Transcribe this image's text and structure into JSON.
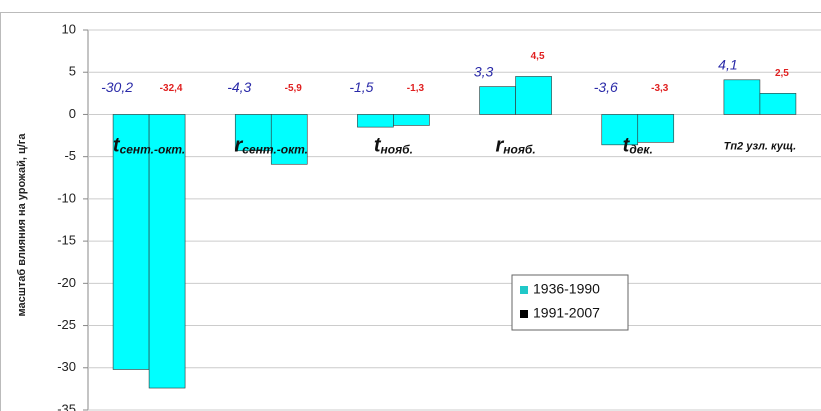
{
  "chart_data": {
    "type": "bar",
    "y_label": "масштаб влияния на урожай, ц/га",
    "categories": [
      {
        "symbol": "t",
        "subscript": "сент.-окт."
      },
      {
        "symbol": "r",
        "subscript": "сент.-окт."
      },
      {
        "symbol": "t",
        "subscript": "нояб."
      },
      {
        "symbol": "r",
        "subscript": "нояб."
      },
      {
        "symbol": "t",
        "subscript": "дек."
      },
      {
        "symbol": "Tп2 узл. кущ."
      }
    ],
    "series": [
      {
        "name": "1936-1990",
        "color": "#00ffff",
        "legend_color": "#20c8c8",
        "label_color": "#2a2aa8",
        "values": [
          -30.2,
          -4.3,
          -1.5,
          3.3,
          -3.6,
          4.1
        ],
        "value_labels": [
          "-30,2",
          "-4,3",
          "-1,5",
          "3,3",
          "-3,6",
          "4,1"
        ]
      },
      {
        "name": "1991-2007",
        "color": "#00ffff",
        "legend_color": "#000000",
        "label_color": "#e02020",
        "values": [
          -32.4,
          -5.9,
          -1.3,
          4.5,
          -3.3,
          2.5
        ],
        "value_labels": [
          "-32,4",
          "-5,9",
          "-1,3",
          "4,5",
          "-3,3",
          "2,5"
        ]
      }
    ],
    "ylim": [
      -35,
      10
    ],
    "yticks": [
      -35,
      -30,
      -25,
      -20,
      -15,
      -10,
      -5,
      0,
      5,
      10
    ],
    "grid": true
  }
}
